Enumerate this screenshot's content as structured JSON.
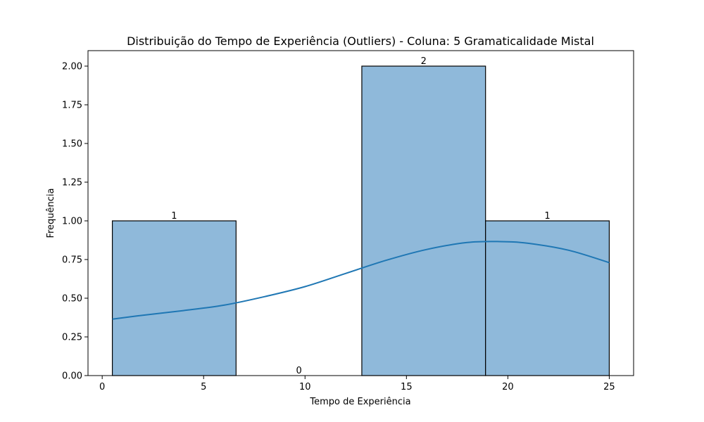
{
  "chart_data": {
    "type": "bar",
    "title": "Distribuição do Tempo de Experiência (Outliers) - Coluna: 5 Gramaticalidade Mistal",
    "xlabel": "Tempo de Experiência",
    "ylabel": "Frequência",
    "xlim": [
      -0.7,
      26.2
    ],
    "ylim": [
      0,
      2.1
    ],
    "x_ticks": [
      0,
      5,
      10,
      15,
      20,
      25
    ],
    "x_tick_labels": [
      "0",
      "5",
      "10",
      "15",
      "20",
      "25"
    ],
    "y_ticks": [
      0,
      0.25,
      0.5,
      0.75,
      1.0,
      1.25,
      1.5,
      1.75,
      2.0
    ],
    "y_tick_labels": [
      "0.00",
      "0.25",
      "0.50",
      "0.75",
      "1.00",
      "1.25",
      "1.50",
      "1.75",
      "2.00"
    ],
    "bins": [
      {
        "x0": 0.5,
        "x1": 6.6,
        "count": 1,
        "label": "1"
      },
      {
        "x0": 6.6,
        "x1": 12.8,
        "count": 0,
        "label": "0"
      },
      {
        "x0": 12.8,
        "x1": 18.9,
        "count": 2,
        "label": "2"
      },
      {
        "x0": 18.9,
        "x1": 25.0,
        "count": 1,
        "label": "1"
      }
    ],
    "kde": {
      "x": [
        0.5,
        2,
        4,
        6,
        8,
        10,
        12,
        14,
        16,
        18,
        19.6,
        21,
        23,
        25
      ],
      "y": [
        0.365,
        0.39,
        0.42,
        0.455,
        0.51,
        0.575,
        0.66,
        0.745,
        0.815,
        0.86,
        0.866,
        0.855,
        0.81,
        0.73
      ]
    },
    "grid": false,
    "colors": {
      "bar_fill": "#8fb9da",
      "bar_edge": "#000000",
      "kde_line": "#1f77b4"
    }
  }
}
